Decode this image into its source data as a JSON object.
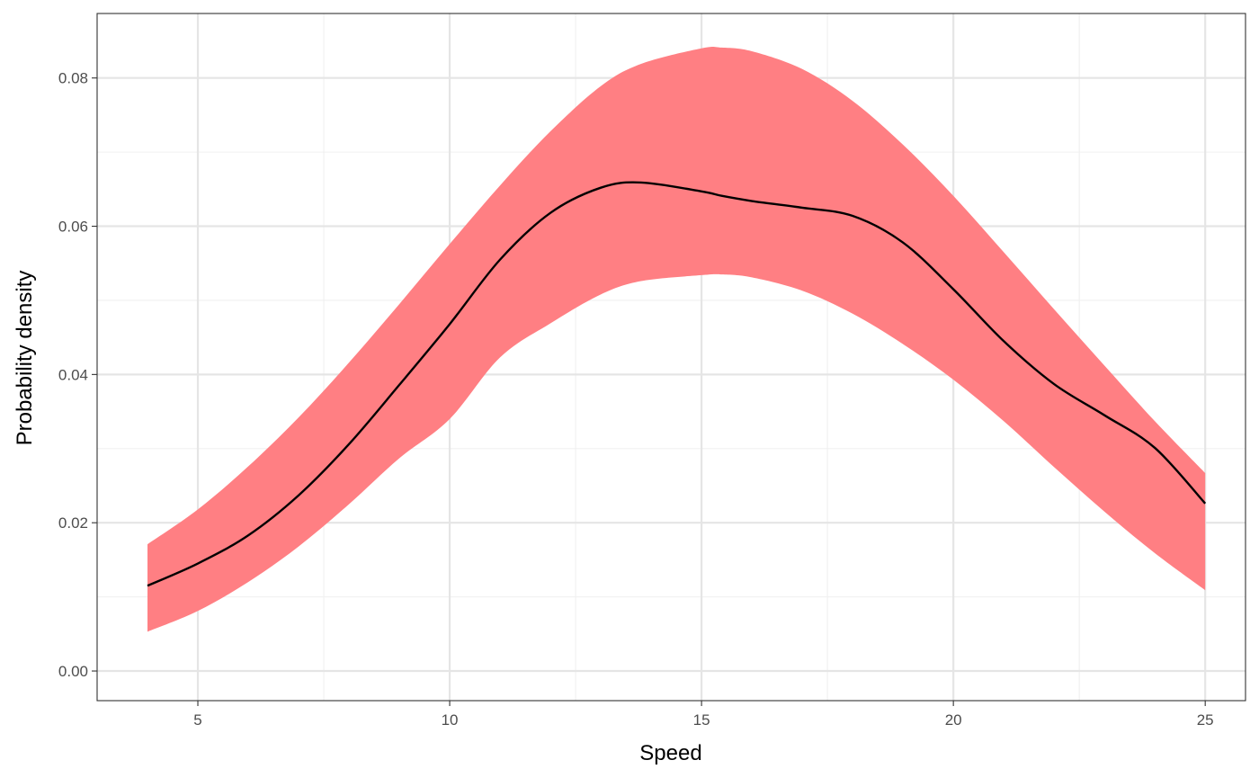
{
  "chart_data": {
    "type": "area",
    "title": "",
    "xlabel": "Speed",
    "ylabel": "Probability density",
    "xlim": [
      3,
      25.8
    ],
    "ylim": [
      -0.004,
      0.0887
    ],
    "x_ticks": [
      5,
      10,
      15,
      20,
      25
    ],
    "x_tick_labels": [
      "5",
      "10",
      "15",
      "20",
      "25"
    ],
    "y_ticks": [
      0,
      0.02,
      0.04,
      0.06,
      0.08
    ],
    "y_tick_labels": [
      "0.00",
      "0.02",
      "0.04",
      "0.06",
      "0.08"
    ],
    "grid": true,
    "legend": "none",
    "colors": {
      "band": "#ff7f83",
      "line": "#000000"
    },
    "x": [
      4,
      5,
      6,
      7,
      8,
      9,
      10,
      11,
      12,
      13,
      13.8,
      15,
      15.4,
      16,
      17,
      18,
      19,
      20,
      21,
      22,
      23,
      24,
      25
    ],
    "series": [
      {
        "name": "",
        "role": "upper",
        "values": [
          0.0171,
          0.0218,
          0.0276,
          0.0342,
          0.0416,
          0.0495,
          0.0576,
          0.0655,
          0.0728,
          0.0789,
          0.0819,
          0.084,
          0.0841,
          0.0836,
          0.0812,
          0.0769,
          0.071,
          0.0641,
          0.0565,
          0.0488,
          0.0412,
          0.0337,
          0.0267
        ]
      },
      {
        "name": "",
        "role": "estimate",
        "values": [
          0.0115,
          0.0145,
          0.0183,
          0.0237,
          0.0306,
          0.0386,
          0.0468,
          0.0555,
          0.0618,
          0.0652,
          0.0659,
          0.0647,
          0.0641,
          0.0634,
          0.0625,
          0.0614,
          0.0578,
          0.0515,
          0.0445,
          0.0387,
          0.0345,
          0.0301,
          0.0226
        ]
      },
      {
        "name": "",
        "role": "lower",
        "values": [
          0.0053,
          0.0081,
          0.012,
          0.0168,
          0.0225,
          0.0287,
          0.034,
          0.0423,
          0.0469,
          0.0508,
          0.0526,
          0.0534,
          0.0535,
          0.0531,
          0.0513,
          0.0482,
          0.0441,
          0.0393,
          0.0337,
          0.0275,
          0.0215,
          0.0159,
          0.0109
        ]
      }
    ]
  }
}
